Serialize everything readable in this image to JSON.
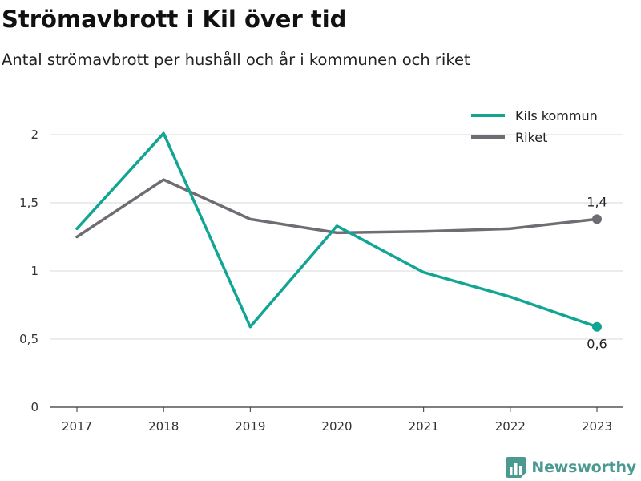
{
  "header": {
    "title": "Strömavbrott i Kil över tid",
    "subtitle": "Antal strömavbrott per hushåll och år i kommunen och riket"
  },
  "brand": {
    "name": "Newsworthy",
    "color": "#4a9a92",
    "icon": "bar-chart-logo-icon"
  },
  "chart_data": {
    "type": "line",
    "x": [
      "2017",
      "2018",
      "2019",
      "2020",
      "2021",
      "2022",
      "2023"
    ],
    "ylim": [
      0,
      2
    ],
    "yticks": [
      0,
      0.5,
      1,
      1.5,
      2
    ],
    "ytick_labels": [
      "0",
      "0,5",
      "1",
      "1,5",
      "2"
    ],
    "grid": true,
    "legend_position": "top-right",
    "series": [
      {
        "name": "Kils kommun",
        "color": "#12a594",
        "values": [
          1.31,
          2.01,
          0.59,
          1.33,
          0.99,
          0.81,
          0.59
        ],
        "end_label": "0,6",
        "end_label_position": "below"
      },
      {
        "name": "Riket",
        "color": "#6f6d73",
        "values": [
          1.25,
          1.67,
          1.38,
          1.28,
          1.29,
          1.31,
          1.38
        ],
        "end_label": "1,4",
        "end_label_position": "above"
      }
    ]
  }
}
